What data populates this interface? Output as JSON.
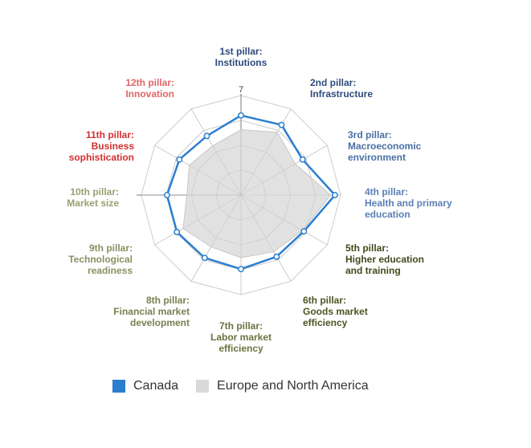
{
  "chart_data": {
    "type": "radar",
    "scale_max_label": "7",
    "rmax": 7,
    "categories": [
      {
        "line1": "1st pillar:",
        "line2": "Institutions",
        "line3": "",
        "color": "#2e4a7d"
      },
      {
        "line1": "2nd pillar:",
        "line2": "Infrastructure",
        "line3": "",
        "color": "#2e4a7d"
      },
      {
        "line1": "3rd pillar:",
        "line2": "Macroeconomic",
        "line3": "environment",
        "color": "#4a6fa5"
      },
      {
        "line1": "4th pillar:",
        "line2": "Health and primary",
        "line3": "education",
        "color": "#5a7fb5"
      },
      {
        "line1": "5th pillar:",
        "line2": "Higher education",
        "line3": "and training",
        "color": "#3f4a1a"
      },
      {
        "line1": "6th pillar:",
        "line2": "Goods market",
        "line3": "efficiency",
        "color": "#4a5520"
      },
      {
        "line1": "7th pillar:",
        "line2": "Labor market",
        "line3": "efficiency",
        "color": "#6b7340"
      },
      {
        "line1": "8th pillar:",
        "line2": "Financial market",
        "line3": "development",
        "color": "#7a8050"
      },
      {
        "line1": "9th pillar:",
        "line2": "Technological",
        "line3": "readiness",
        "color": "#8a9060"
      },
      {
        "line1": "10th pillar:",
        "line2": "Market size",
        "line3": "",
        "color": "#9aa070"
      },
      {
        "line1": "11th pillar:",
        "line2": "Business",
        "line3": "sophistication",
        "color": "#d32f2f"
      },
      {
        "line1": "12th pillar:",
        "line2": "Innovation",
        "line3": "",
        "color": "#e06666"
      }
    ],
    "series": [
      {
        "name": "Canada",
        "color": "#2b7fce",
        "values": [
          5.6,
          5.7,
          5.0,
          6.6,
          5.1,
          5.0,
          5.2,
          5.1,
          5.2,
          5.2,
          5.0,
          4.8
        ]
      },
      {
        "name": "Europe and North America",
        "color": "#d9d9d9",
        "values": [
          4.6,
          5.1,
          4.4,
          6.3,
          5.0,
          4.6,
          4.4,
          4.2,
          4.7,
          3.8,
          4.2,
          4.0
        ]
      }
    ]
  },
  "legend": [
    {
      "label": "Canada",
      "color": "#2b7fce"
    },
    {
      "label": "Europe and North America",
      "color": "#d9d9d9"
    }
  ]
}
